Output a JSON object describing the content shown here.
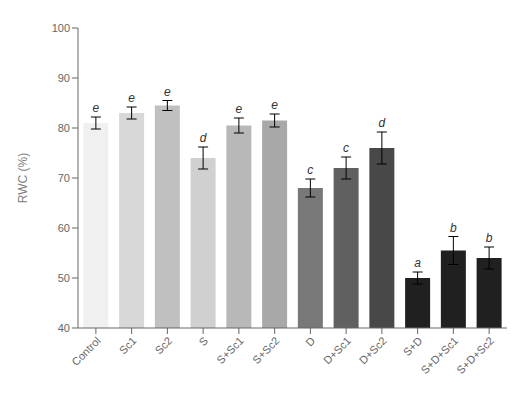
{
  "chart_data": {
    "type": "bar",
    "categories": [
      "Control",
      "Sc1",
      "Sc2",
      "S",
      "S+Sc1",
      "S+Sc2",
      "D",
      "D+Sc1",
      "D+Sc2",
      "S+D",
      "S+D+Sc1",
      "S+D+Sc2"
    ],
    "values": [
      81.0,
      83.0,
      84.5,
      74.0,
      80.5,
      81.5,
      68.0,
      72.0,
      76.0,
      50.0,
      55.5,
      54.0
    ],
    "errors": [
      1.2,
      1.2,
      1.0,
      2.2,
      1.5,
      1.3,
      1.8,
      2.2,
      3.2,
      1.2,
      2.8,
      2.2
    ],
    "annotations": [
      "e",
      "e",
      "e",
      "d",
      "e",
      "e",
      "c",
      "c",
      "d",
      "a",
      "b",
      "b"
    ],
    "colors": [
      "#f0f0f0",
      "#d8d8d8",
      "#c0c0c0",
      "#d0d0d0",
      "#b8b8b8",
      "#a8a8a8",
      "#787878",
      "#606060",
      "#484848",
      "#202020",
      "#202020",
      "#202020"
    ],
    "ylabel": "RWC (%)",
    "ylim": [
      40,
      100
    ],
    "yticks": [
      40,
      50,
      60,
      70,
      80,
      90,
      100
    ],
    "grid": false
  }
}
